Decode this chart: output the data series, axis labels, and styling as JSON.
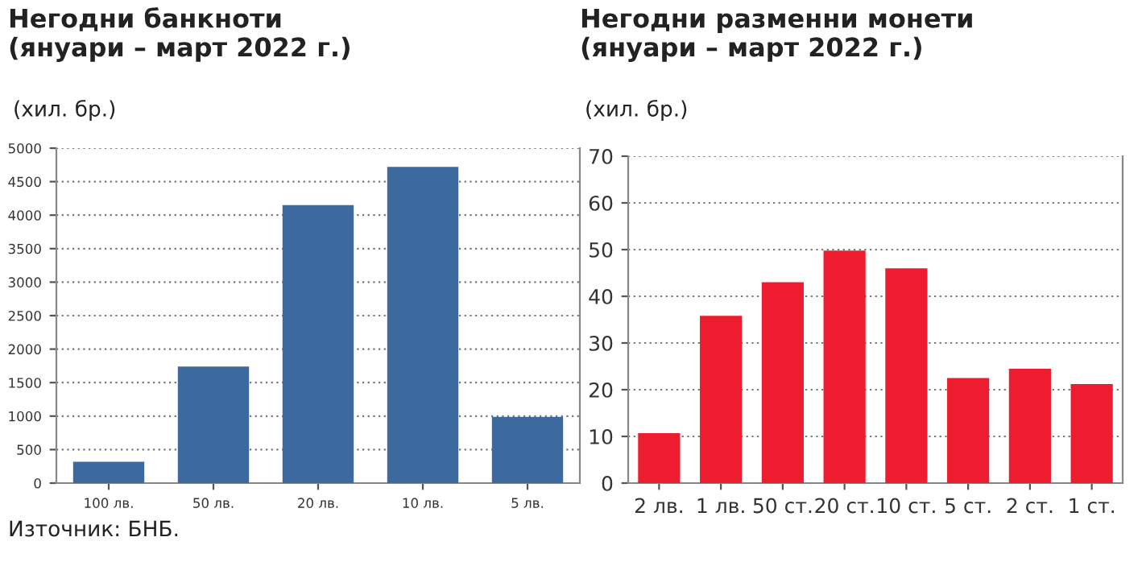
{
  "chart_data": [
    {
      "type": "bar",
      "title": "Негодни банкноти\n(януари – март 2022 г.)",
      "subtitle": "(хил. бр.)",
      "categories": [
        "100 лв.",
        "50 лв.",
        "20 лв.",
        "10 лв.",
        "5 лв."
      ],
      "values": [
        320,
        1740,
        4150,
        4720,
        990
      ],
      "color": "#3d6a9e",
      "ylim": [
        0,
        5000
      ],
      "yticks": [
        0,
        500,
        1000,
        1500,
        2000,
        2500,
        3000,
        3500,
        4000,
        4500,
        5000
      ],
      "grid": "y",
      "annotations": [
        "Източник: БНБ."
      ]
    },
    {
      "type": "bar",
      "title": "Негодни разменни монети\n(януари – март 2022 г.)",
      "subtitle": "(хил. бр.)",
      "categories": [
        "2 лв.",
        "1 лв.",
        "50 ст.",
        "20 ст.",
        "10 ст.",
        "5 ст.",
        "2 ст.",
        "1 ст."
      ],
      "values": [
        10.7,
        35.8,
        43,
        49.8,
        46,
        22.5,
        24.5,
        21.2
      ],
      "color": "#ed1c2e",
      "ylim": [
        0,
        70
      ],
      "yticks": [
        0,
        10,
        20,
        30,
        40,
        50,
        60,
        70
      ],
      "grid": "y"
    }
  ]
}
